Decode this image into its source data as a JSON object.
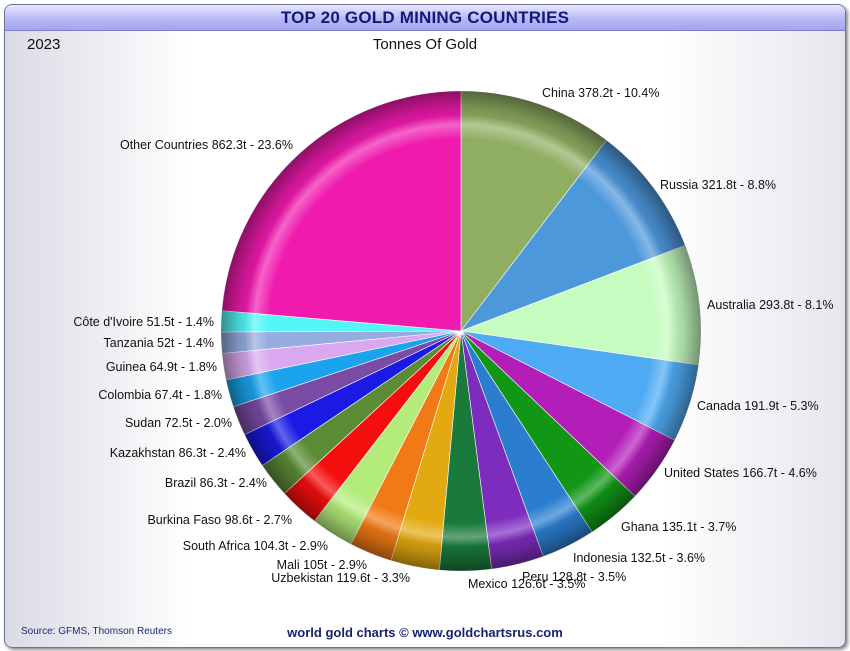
{
  "header": {
    "title": "TOP 20 GOLD MINING COUNTRIES",
    "year": "2023",
    "subtitle": "Tonnes Of Gold"
  },
  "footer": {
    "source": "Source: GFMS, Thomson Reuters",
    "site": "world gold charts © www.goldchartsrus.com"
  },
  "chart_data": {
    "type": "pie",
    "title": "TOP 20 GOLD MINING COUNTRIES",
    "subtitle": "Tonnes Of Gold",
    "unit": "t",
    "start": "12 o'clock",
    "direction": "clockwise",
    "slices": [
      {
        "name": "China",
        "value": 378.2,
        "label": "China 378.2t - 10.4%",
        "color": "#8fae62"
      },
      {
        "name": "Russia",
        "value": 321.8,
        "label": "Russia 321.8t - 8.8%",
        "color": "#4d97db"
      },
      {
        "name": "Australia",
        "value": 293.8,
        "label": "Australia 293.8t - 8.1%",
        "color": "#c6fcc0"
      },
      {
        "name": "Canada",
        "value": 191.9,
        "label": "Canada 191.9t - 5.3%",
        "color": "#4eaaf2"
      },
      {
        "name": "United States",
        "value": 166.7,
        "label": "United States 166.7t - 4.6%",
        "color": "#b31eb8"
      },
      {
        "name": "Ghana",
        "value": 135.1,
        "label": "Ghana 135.1t - 3.7%",
        "color": "#119616"
      },
      {
        "name": "Indonesia",
        "value": 132.5,
        "label": "Indonesia 132.5t - 3.6%",
        "color": "#2b7ecf"
      },
      {
        "name": "Peru",
        "value": 128.8,
        "label": "Peru 128.8t - 3.5%",
        "color": "#7d2dbe"
      },
      {
        "name": "Mexico",
        "value": 126.6,
        "label": "Mexico 126.6t - 3.5%",
        "color": "#1a7a3c"
      },
      {
        "name": "Uzbekistan",
        "value": 119.6,
        "label": "Uzbekistan 119.6t - 3.3%",
        "color": "#e2aa10"
      },
      {
        "name": "Mali",
        "value": 105,
        "label": "Mali 105t - 2.9%",
        "color": "#f07a16"
      },
      {
        "name": "South Africa",
        "value": 104.3,
        "label": "South Africa 104.3t - 2.9%",
        "color": "#b4ec7c"
      },
      {
        "name": "Burkina Faso",
        "value": 98.6,
        "label": "Burkina Faso 98.6t - 2.7%",
        "color": "#f50e0e"
      },
      {
        "name": "Brazil",
        "value": 86.3,
        "label": "Brazil 86.3t - 2.4%",
        "color": "#5a8c36"
      },
      {
        "name": "Kazakhstan",
        "value": 86.3,
        "label": "Kazakhstan 86.3t - 2.4%",
        "color": "#1a1ae4"
      },
      {
        "name": "Sudan",
        "value": 72.5,
        "label": "Sudan 72.5t - 2.0%",
        "color": "#7a4ca6"
      },
      {
        "name": "Colombia",
        "value": 67.4,
        "label": "Colombia 67.4t - 1.8%",
        "color": "#1aa4ee"
      },
      {
        "name": "Guinea",
        "value": 64.9,
        "label": "Guinea 64.9t - 1.8%",
        "color": "#d9a8ef"
      },
      {
        "name": "Tanzania",
        "value": 52,
        "label": "Tanzania 52t - 1.4%",
        "color": "#95acde"
      },
      {
        "name": "Côte d'Ivoire",
        "value": 51.5,
        "label": "Côte d'Ivoire 51.5t - 1.4%",
        "color": "#52f6f6"
      },
      {
        "name": "Other Countries",
        "value": 862.3,
        "label": "Other Countries 862.3t - 23.6%",
        "color": "#f01aae"
      }
    ]
  }
}
